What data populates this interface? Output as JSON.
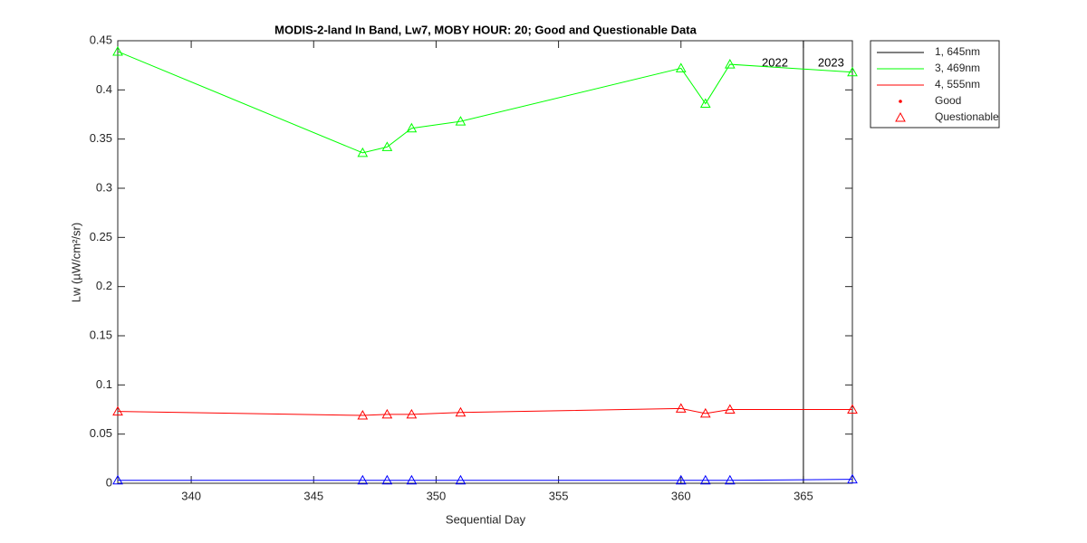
{
  "chart_data": {
    "type": "line",
    "title": "MODIS-2-land In Band,  Lw7, MOBY HOUR: 20;  Good and Questionable Data",
    "xlabel": "Sequential Day",
    "ylabel": "Lw (µW/cm²/sr)",
    "x": [
      337,
      347,
      348,
      349,
      351,
      360,
      361,
      362,
      367
    ],
    "series": [
      {
        "name": "1, 645nm",
        "color": "#0000ff",
        "legend_color": "#000000",
        "values": [
          0.003,
          0.003,
          0.003,
          0.003,
          0.003,
          0.003,
          0.003,
          0.003,
          0.004
        ]
      },
      {
        "name": "3, 469nm",
        "color": "#00ff00",
        "legend_color": "#00ff00",
        "values": [
          0.439,
          0.336,
          0.342,
          0.361,
          0.368,
          0.422,
          0.386,
          0.426,
          0.418
        ]
      },
      {
        "name": "4, 555nm",
        "color": "#ff0000",
        "legend_color": "#ff0000",
        "values": [
          0.073,
          0.069,
          0.07,
          0.07,
          0.072,
          0.076,
          0.071,
          0.075,
          0.075
        ]
      }
    ],
    "legend_markers": [
      {
        "name": "Good",
        "color": "#ff0000"
      },
      {
        "name": "Questionable",
        "color": "#ff0000"
      }
    ],
    "vline": 365,
    "annotations": [
      "2022",
      "2023"
    ],
    "xlim": [
      337,
      367
    ],
    "xticks": [
      340,
      345,
      350,
      355,
      360,
      365
    ],
    "ylim": [
      0,
      0.45
    ],
    "yticks": [
      0,
      0.05,
      0.1,
      0.15,
      0.2,
      0.25,
      0.3,
      0.35,
      0.4,
      0.45
    ],
    "legend": "outside-top-right"
  }
}
